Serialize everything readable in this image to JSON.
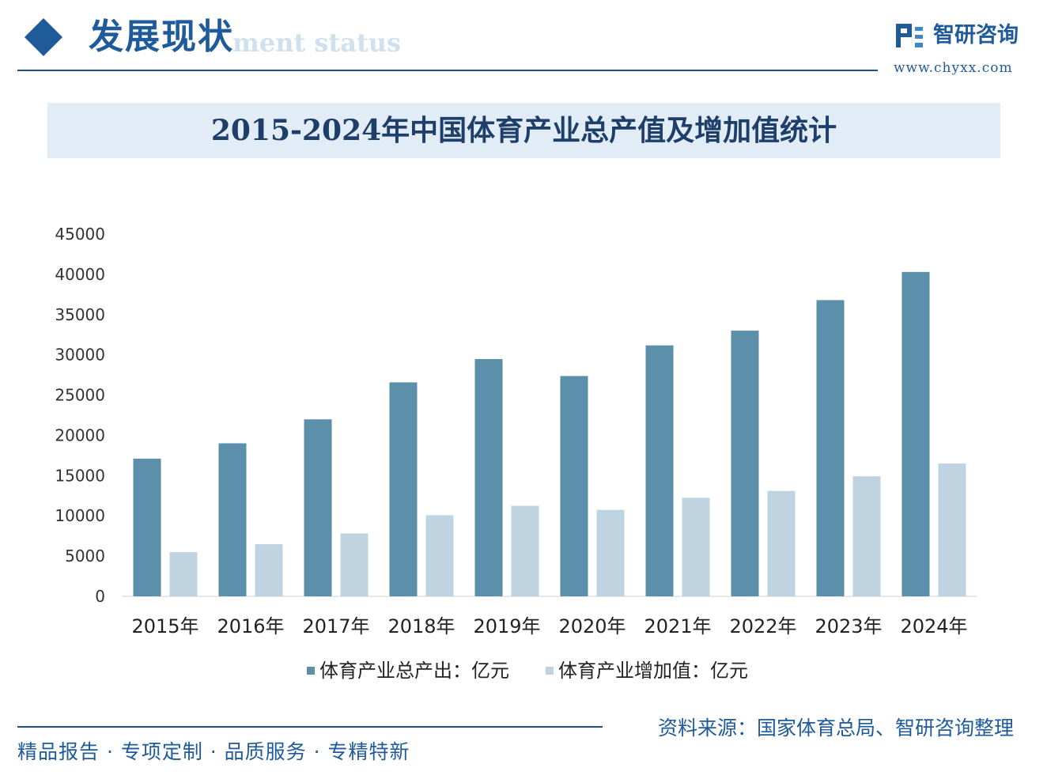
{
  "header": {
    "title": "发展现状",
    "subtitle": "ment status"
  },
  "brand": {
    "name": "智研咨询",
    "url": "www.chyxx.com"
  },
  "colors": {
    "series_total": "#5b8faa",
    "series_added": "#bfd4e1",
    "accent": "#1f5a9a"
  },
  "chart_data": {
    "type": "bar",
    "title": "2015-2024年中国体育产业总产值及增加值统计",
    "categories": [
      "2015年",
      "2016年",
      "2017年",
      "2018年",
      "2019年",
      "2020年",
      "2021年",
      "2022年",
      "2023年",
      "2024年"
    ],
    "series": [
      {
        "name": "体育产业总产出：亿元",
        "values": [
          17107,
          19011,
          21988,
          26579,
          29483,
          27372,
          31175,
          33008,
          36800,
          40300
        ]
      },
      {
        "name": "体育产业增加值：亿元",
        "values": [
          5494,
          6475,
          7811,
          10078,
          11248,
          10735,
          12245,
          13092,
          14915,
          16500
        ]
      }
    ],
    "ylim": [
      0,
      45000
    ],
    "yticks": [
      "45000",
      "40000",
      "35000",
      "30000",
      "25000",
      "20000",
      "15000",
      "10000",
      "5000",
      "0"
    ],
    "xlabel": "",
    "ylabel": "",
    "legend_position": "bottom"
  },
  "footer": {
    "source": "资料来源：国家体育总局、智研咨询整理",
    "tagline": "精品报告 · 专项定制 · 品质服务 · 专精特新"
  }
}
